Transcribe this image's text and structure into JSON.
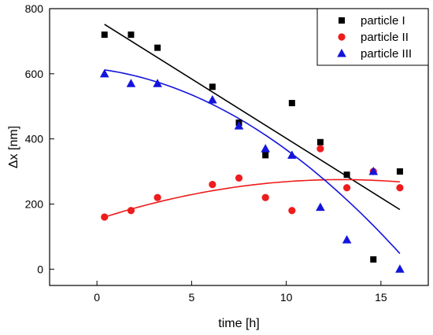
{
  "chart_data": {
    "type": "scatter",
    "xlabel": "time [h]",
    "ylabel": "Δx [nm]",
    "xlim": [
      -2.5,
      17.5
    ],
    "ylim": [
      -50,
      800
    ],
    "xticks": [
      0,
      5,
      10,
      15
    ],
    "yticks": [
      0,
      200,
      400,
      600,
      800
    ],
    "legend_position": "top-right",
    "series": [
      {
        "name": "particle I",
        "marker": "square",
        "color": "#000000",
        "x": [
          0.4,
          1.8,
          3.2,
          6.1,
          7.5,
          8.9,
          10.3,
          11.8,
          13.2,
          14.6,
          16.0
        ],
        "y": [
          720,
          720,
          680,
          560,
          450,
          350,
          510,
          390,
          290,
          30,
          300
        ],
        "fit": {
          "kind": "linear",
          "x": [
            0.4,
            16.0
          ],
          "y": [
            752,
            183
          ]
        }
      },
      {
        "name": "particle II",
        "marker": "circle",
        "color": "#ee1c1c",
        "x": [
          0.4,
          1.8,
          3.2,
          6.1,
          7.5,
          8.9,
          10.3,
          11.8,
          13.2,
          14.6,
          16.0
        ],
        "y": [
          160,
          180,
          220,
          260,
          280,
          220,
          180,
          370,
          250,
          300,
          250
        ],
        "fit": {
          "kind": "quadratic",
          "x": [
            0.4,
            13.0,
            16.0
          ],
          "y": [
            160,
            275,
            268
          ]
        }
      },
      {
        "name": "particle III",
        "marker": "triangle",
        "color": "#1414dc",
        "x": [
          0.4,
          1.8,
          3.2,
          6.1,
          7.5,
          8.9,
          10.3,
          11.8,
          13.2,
          14.6,
          16.0
        ],
        "y": [
          600,
          570,
          570,
          520,
          440,
          370,
          350,
          190,
          90,
          300,
          0
        ],
        "fit": {
          "kind": "quadratic",
          "x": [
            0.4,
            8.0,
            16.0
          ],
          "y": [
            612,
            445,
            48
          ]
        }
      }
    ]
  }
}
